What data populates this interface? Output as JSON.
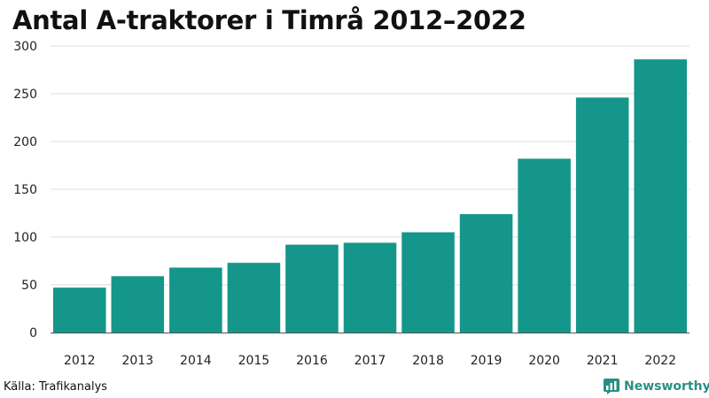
{
  "title": "Antal A-traktorer i Timrå 2012–2022",
  "source": "Källa: Trafikanalys",
  "brand": {
    "name": "Newsworthy",
    "icon": "newsworthy-logo-icon",
    "color": "#2a8f80"
  },
  "colors": {
    "bar": "#15968a",
    "grid": "#dddddd",
    "axis": "#555555"
  },
  "chart_data": {
    "type": "bar",
    "title": "Antal A-traktorer i Timrå 2012–2022",
    "xlabel": "",
    "ylabel": "",
    "categories": [
      "2012",
      "2013",
      "2014",
      "2015",
      "2016",
      "2017",
      "2018",
      "2019",
      "2020",
      "2021",
      "2022"
    ],
    "values": [
      47,
      59,
      68,
      73,
      92,
      94,
      105,
      124,
      182,
      246,
      286
    ],
    "ylim": [
      0,
      300
    ],
    "yticks": [
      0,
      50,
      100,
      150,
      200,
      250,
      300
    ],
    "grid": true,
    "legend": "none"
  }
}
